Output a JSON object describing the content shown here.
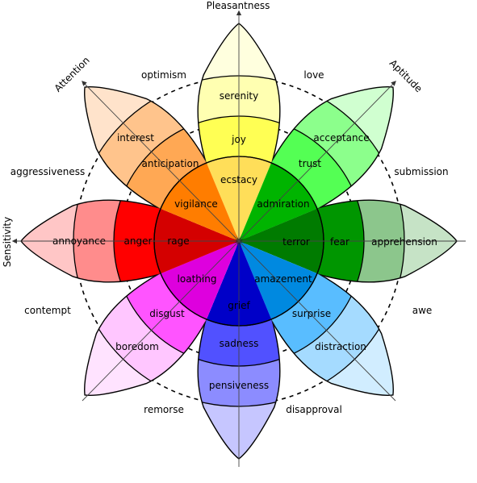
{
  "axes": {
    "vertical": "Pleasantness",
    "horizontal": "Sensitivity",
    "diag_left": "Attention",
    "diag_right": "Aptitude"
  },
  "petals": [
    {
      "name": "yellow",
      "inner": "ecstacy",
      "middle": "joy",
      "outer": "serenity",
      "colors": [
        "#FFDE59",
        "#FFFF54",
        "#FFFFB1",
        "#FFFFDE"
      ]
    },
    {
      "name": "green",
      "inner": "admiration",
      "middle": "trust",
      "outer": "acceptance",
      "colors": [
        "#00B400",
        "#54FF54",
        "#8CFF8C",
        "#D0FFD0"
      ]
    },
    {
      "name": "dark-green",
      "inner": "terror",
      "middle": "fear",
      "outer": "apprehension",
      "colors": [
        "#007B00",
        "#009600",
        "#8CC68C",
        "#C6E3C6"
      ]
    },
    {
      "name": "blue",
      "inner": "amazement",
      "middle": "surprise",
      "outer": "distraction",
      "colors": [
        "#0089E0",
        "#59BDFF",
        "#A5DBFF",
        "#D1EDFF"
      ]
    },
    {
      "name": "dark-blue",
      "inner": "grief",
      "middle": "sadness",
      "outer": "pensiveness",
      "colors": [
        "#0000C8",
        "#5151FF",
        "#8C8CFF",
        "#C6C6FF"
      ]
    },
    {
      "name": "purple",
      "inner": "loathing",
      "middle": "disgust",
      "outer": "boredom",
      "colors": [
        "#DE00DE",
        "#FF54FF",
        "#FFC6FF",
        "#FFE3FF"
      ]
    },
    {
      "name": "red",
      "inner": "rage",
      "middle": "anger",
      "outer": "annoyance",
      "colors": [
        "#D40000",
        "#FF0000",
        "#FF8C8C",
        "#FFC6C6"
      ]
    },
    {
      "name": "orange",
      "inner": "vigilance",
      "middle": "anticipation",
      "outer": "interest",
      "colors": [
        "#FF7D00",
        "#FFA854",
        "#FFC48C",
        "#FFE3CB"
      ]
    }
  ],
  "dyads": {
    "love": "love",
    "submission": "submission",
    "awe": "awe",
    "disapproval": "disapproval",
    "remorse": "remorse",
    "contempt": "contempt",
    "aggressiveness": "aggressiveness",
    "optimism": "optimism"
  }
}
